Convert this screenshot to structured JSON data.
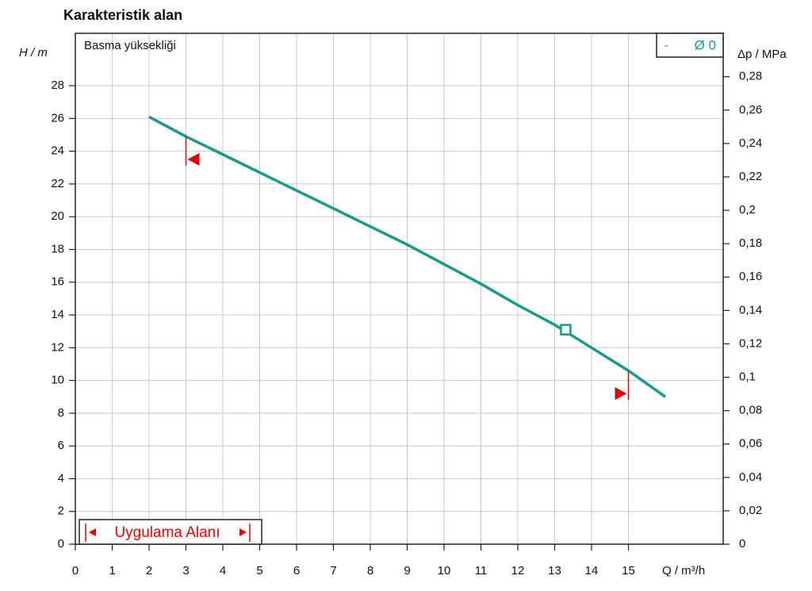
{
  "chart_data": {
    "type": "line",
    "title": "Karakteristik alan",
    "annotation": "Basma yüksekliği",
    "range_label": "Uygulama Alanı",
    "y_label": "H / m",
    "y2_label": "Δp / MPa",
    "x_label": "Q / m³/h",
    "legend_prefix": "-",
    "x": [
      2,
      3,
      4,
      5,
      6,
      7,
      8,
      9,
      10,
      11,
      12,
      13,
      14,
      15,
      16
    ],
    "series": [
      {
        "name": "Ø 0",
        "color": "#1a9a8a",
        "values": [
          26.1,
          24.9,
          23.8,
          22.7,
          21.6,
          20.5,
          19.4,
          18.3,
          17.1,
          15.9,
          14.6,
          13.4,
          12.0,
          10.6,
          9.0
        ]
      }
    ],
    "operating_point": {
      "x": 13.3,
      "y": 13.1
    },
    "limits": [
      {
        "x": 3,
        "y": 23.5,
        "from": 24.9
      },
      {
        "x": 15,
        "y": 9.2,
        "from": 10.6
      }
    ],
    "limit_color": "#e00000",
    "xlim": [
      0,
      17.57
    ],
    "ylim": [
      0,
      31.2
    ],
    "y2lim": [
      0,
      0.306
    ],
    "xticks": [
      0,
      1,
      2,
      3,
      4,
      5,
      6,
      7,
      8,
      9,
      10,
      11,
      12,
      13,
      14,
      15
    ],
    "yticks": [
      0,
      2,
      4,
      6,
      8,
      10,
      12,
      14,
      16,
      18,
      20,
      22,
      24,
      26,
      28
    ],
    "y2ticks": [
      0,
      {
        "value": 0.02,
        "label": "0,02"
      },
      {
        "value": 0.04,
        "label": "0,04"
      },
      {
        "value": 0.06,
        "label": "0,06"
      },
      {
        "value": 0.08,
        "label": "0,08"
      },
      {
        "value": 0.1,
        "label": "0,1"
      },
      {
        "value": 0.12,
        "label": "0,12"
      },
      {
        "value": 0.14,
        "label": "0,14"
      },
      {
        "value": 0.16,
        "label": "0,16"
      },
      {
        "value": 0.18,
        "label": "0,18"
      },
      {
        "value": 0.2,
        "label": "0,2"
      },
      {
        "value": 0.22,
        "label": "0,22"
      },
      {
        "value": 0.24,
        "label": "0,24"
      },
      {
        "value": 0.26,
        "label": "0,26"
      },
      {
        "value": 0.28,
        "label": "0,28"
      }
    ],
    "grid": true
  }
}
